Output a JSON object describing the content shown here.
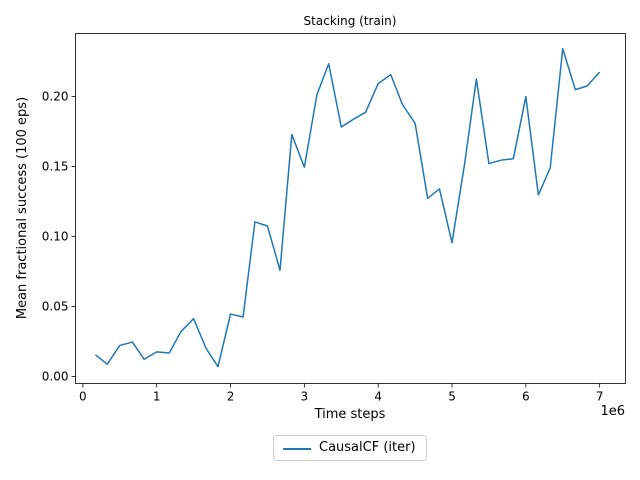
{
  "chart_data": {
    "type": "line",
    "title": "Stacking (train)",
    "xlabel": "Time steps",
    "ylabel": "Mean fractional success (100 eps)",
    "x_scale_label": "1e6",
    "xlim": [
      -0.1,
      7.35
    ],
    "ylim": [
      -0.005,
      0.245
    ],
    "x_ticks": [
      0,
      1,
      2,
      3,
      4,
      5,
      6,
      7
    ],
    "x_tick_labels": [
      "0",
      "1",
      "2",
      "3",
      "4",
      "5",
      "6",
      "7"
    ],
    "y_ticks": [
      0.0,
      0.05,
      0.1,
      0.15,
      0.2
    ],
    "y_tick_labels": [
      "0.00",
      "0.05",
      "0.10",
      "0.15",
      "0.20"
    ],
    "grid": false,
    "legend_position": "bottom-center",
    "series": [
      {
        "name": "CausalCF (iter)",
        "color": "#1f77b4",
        "x": [
          0.17,
          0.33,
          0.5,
          0.67,
          0.83,
          1.0,
          1.17,
          1.33,
          1.5,
          1.67,
          1.83,
          2.0,
          2.17,
          2.33,
          2.5,
          2.67,
          2.83,
          3.0,
          3.17,
          3.33,
          3.5,
          3.67,
          3.83,
          4.0,
          4.17,
          4.33,
          4.5,
          4.67,
          4.83,
          5.0,
          5.17,
          5.33,
          5.5,
          5.67,
          5.83,
          6.0,
          6.17,
          6.33,
          6.5,
          6.67,
          6.83,
          7.0
        ],
        "y": [
          0.0155,
          0.0088,
          0.0222,
          0.0246,
          0.0123,
          0.0176,
          0.0168,
          0.0322,
          0.0413,
          0.02,
          0.007,
          0.0446,
          0.0425,
          0.1104,
          0.1075,
          0.0759,
          0.1728,
          0.1495,
          0.2013,
          0.2234,
          0.1782,
          0.1839,
          0.1888,
          0.2092,
          0.2156,
          0.1941,
          0.1809,
          0.1273,
          0.134,
          0.0956,
          0.1517,
          0.2125,
          0.1521,
          0.1546,
          0.1555,
          0.1999,
          0.1297,
          0.149,
          0.2342,
          0.2049,
          0.2075,
          0.2174
        ]
      }
    ]
  }
}
